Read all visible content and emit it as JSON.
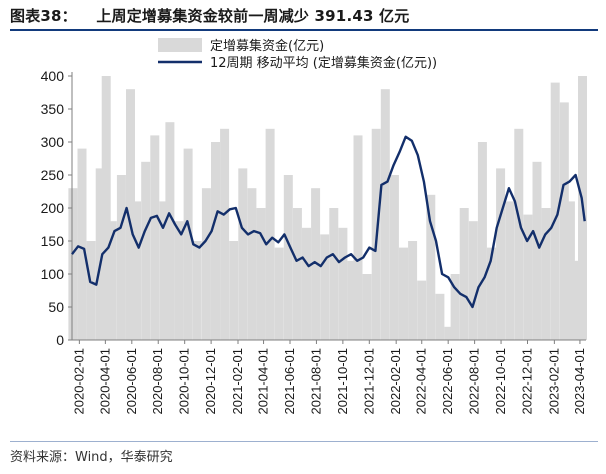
{
  "title": {
    "label": "图表38：",
    "text": "上周定增募集资金较前一周减少 391.43 亿元"
  },
  "source": "资料来源：Wind，华泰研究",
  "colors": {
    "bar": "#d9d9d9",
    "line": "#132f6b",
    "rule": "#123a7c"
  },
  "chart_data": {
    "type": "area",
    "legend": {
      "position": "top-center",
      "entries": [
        "定增募集资金(亿元)",
        "12周期 移动平均 (定增募集资金(亿元))"
      ]
    },
    "ylim": [
      0,
      400
    ],
    "yticks": [
      "0",
      "50",
      "100",
      "150",
      "200",
      "250",
      "300",
      "350",
      "400"
    ],
    "xticks": [
      "2020-02-01",
      "2020-04-01",
      "2020-06-01",
      "2020-08-01",
      "2020-10-01",
      "2020-12-01",
      "2021-02-01",
      "2021-04-01",
      "2021-06-01",
      "2021-08-01",
      "2021-10-01",
      "2021-12-01",
      "2022-02-01",
      "2022-04-01",
      "2022-06-01",
      "2022-08-01",
      "2022-10-01",
      "2022-12-01",
      "2023-02-01",
      "2023-04-01"
    ],
    "x_range": [
      "2020-01-15",
      "2023-04-15"
    ],
    "series": [
      {
        "name": "定增募集资金(亿元)",
        "type": "bar",
        "x": [
          "2020-01-17",
          "2020-02-07",
          "2020-02-28",
          "2020-03-20",
          "2020-04-03",
          "2020-04-17",
          "2020-05-08",
          "2020-05-29",
          "2020-06-12",
          "2020-07-03",
          "2020-07-24",
          "2020-08-14",
          "2020-08-28",
          "2020-09-18",
          "2020-10-09",
          "2020-10-30",
          "2020-11-20",
          "2020-12-11",
          "2021-01-01",
          "2021-01-22",
          "2021-02-12",
          "2021-03-05",
          "2021-03-26",
          "2021-04-16",
          "2021-05-07",
          "2021-05-28",
          "2021-06-18",
          "2021-07-09",
          "2021-07-30",
          "2021-08-20",
          "2021-09-10",
          "2021-10-01",
          "2021-10-22",
          "2021-11-05",
          "2021-11-26",
          "2021-12-17",
          "2022-01-07",
          "2022-01-28",
          "2022-02-18",
          "2022-03-11",
          "2022-04-01",
          "2022-04-22",
          "2022-05-13",
          "2022-06-03",
          "2022-06-17",
          "2022-07-08",
          "2022-07-29",
          "2022-08-19",
          "2022-09-09",
          "2022-09-30",
          "2022-10-21",
          "2022-11-11",
          "2022-12-02",
          "2022-12-23",
          "2023-01-13",
          "2023-02-03",
          "2023-02-24",
          "2023-03-10",
          "2023-03-24",
          "2023-04-07"
        ],
        "values": [
          230,
          290,
          150,
          260,
          400,
          180,
          250,
          380,
          210,
          270,
          310,
          210,
          330,
          180,
          290,
          150,
          230,
          300,
          320,
          150,
          260,
          230,
          200,
          320,
          140,
          250,
          200,
          170,
          230,
          160,
          200,
          170,
          120,
          310,
          100,
          320,
          380,
          250,
          140,
          150,
          90,
          220,
          70,
          20,
          100,
          200,
          180,
          300,
          140,
          260,
          210,
          320,
          190,
          270,
          200,
          390,
          360,
          210,
          120,
          400
        ]
      },
      {
        "name": "12周期 移动平均 (定增募集资金(亿元))",
        "type": "line",
        "x": [
          "2020-01-15",
          "2020-01-29",
          "2020-02-12",
          "2020-02-26",
          "2020-03-11",
          "2020-03-25",
          "2020-04-08",
          "2020-04-22",
          "2020-05-06",
          "2020-05-20",
          "2020-06-03",
          "2020-06-17",
          "2020-07-01",
          "2020-07-15",
          "2020-07-29",
          "2020-08-12",
          "2020-08-26",
          "2020-09-09",
          "2020-09-23",
          "2020-10-07",
          "2020-10-21",
          "2020-11-04",
          "2020-11-18",
          "2020-12-02",
          "2020-12-16",
          "2020-12-30",
          "2021-01-13",
          "2021-01-27",
          "2021-02-10",
          "2021-02-24",
          "2021-03-10",
          "2021-03-24",
          "2021-04-07",
          "2021-04-21",
          "2021-05-05",
          "2021-05-19",
          "2021-06-02",
          "2021-06-16",
          "2021-06-30",
          "2021-07-14",
          "2021-07-28",
          "2021-08-11",
          "2021-08-25",
          "2021-09-08",
          "2021-09-22",
          "2021-10-06",
          "2021-10-20",
          "2021-11-03",
          "2021-11-17",
          "2021-12-01",
          "2021-12-15",
          "2021-12-29",
          "2022-01-12",
          "2022-01-26",
          "2022-02-09",
          "2022-02-23",
          "2022-03-09",
          "2022-03-23",
          "2022-04-06",
          "2022-04-20",
          "2022-05-04",
          "2022-05-18",
          "2022-06-01",
          "2022-06-15",
          "2022-06-29",
          "2022-07-13",
          "2022-07-27",
          "2022-08-10",
          "2022-08-24",
          "2022-09-07",
          "2022-09-21",
          "2022-10-05",
          "2022-10-19",
          "2022-11-02",
          "2022-11-16",
          "2022-11-30",
          "2022-12-14",
          "2022-12-28",
          "2023-01-11",
          "2023-01-25",
          "2023-02-08",
          "2023-02-22",
          "2023-03-08",
          "2023-03-22",
          "2023-04-05",
          "2023-04-12"
        ],
        "values": [
          130,
          142,
          138,
          88,
          84,
          130,
          140,
          165,
          170,
          200,
          160,
          140,
          165,
          185,
          188,
          170,
          192,
          175,
          160,
          180,
          145,
          140,
          150,
          165,
          195,
          190,
          198,
          200,
          170,
          160,
          165,
          162,
          145,
          155,
          148,
          160,
          140,
          120,
          125,
          112,
          118,
          112,
          125,
          130,
          118,
          125,
          130,
          120,
          125,
          140,
          135,
          235,
          240,
          265,
          285,
          308,
          302,
          280,
          240,
          180,
          150,
          100,
          95,
          80,
          70,
          65,
          50,
          80,
          95,
          120,
          170,
          200,
          230,
          210,
          170,
          150,
          165,
          140,
          160,
          170,
          190,
          235,
          240,
          250,
          215,
          180
        ]
      }
    ]
  }
}
